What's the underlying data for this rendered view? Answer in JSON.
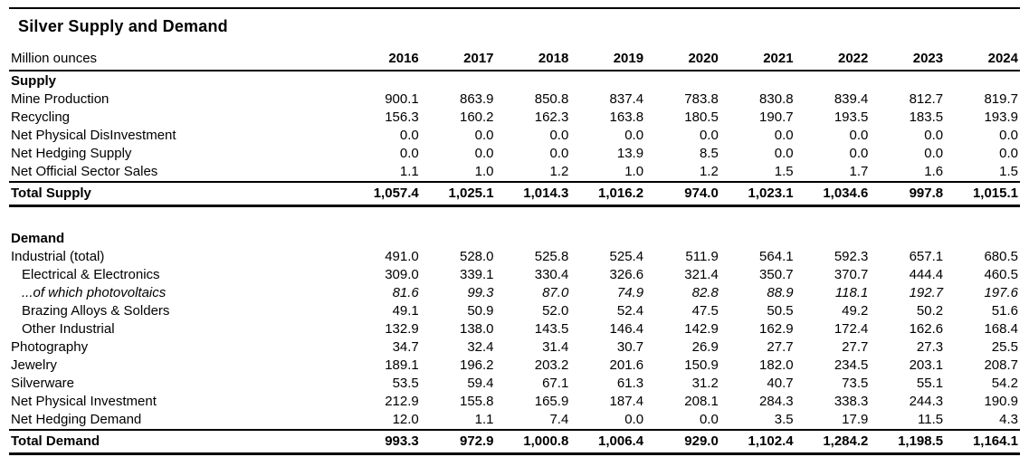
{
  "title": "Silver Supply and Demand",
  "chart_data": {
    "type": "table",
    "title": "Silver Supply and Demand",
    "unit_label": "Million ounces",
    "columns": [
      "2016",
      "2017",
      "2018",
      "2019",
      "2020",
      "2021",
      "2022",
      "2023",
      "2024"
    ],
    "sections": [
      {
        "name": "Supply",
        "rows": [
          {
            "label": "Mine Production",
            "style": "normal",
            "values": [
              "900.1",
              "863.9",
              "850.8",
              "837.4",
              "783.8",
              "830.8",
              "839.4",
              "812.7",
              "819.7"
            ]
          },
          {
            "label": "Recycling",
            "style": "normal",
            "values": [
              "156.3",
              "160.2",
              "162.3",
              "163.8",
              "180.5",
              "190.7",
              "193.5",
              "183.5",
              "193.9"
            ]
          },
          {
            "label": "Net Physical DisInvestment",
            "style": "normal",
            "values": [
              "0.0",
              "0.0",
              "0.0",
              "0.0",
              "0.0",
              "0.0",
              "0.0",
              "0.0",
              "0.0"
            ]
          },
          {
            "label": "Net Hedging Supply",
            "style": "normal",
            "values": [
              "0.0",
              "0.0",
              "0.0",
              "13.9",
              "8.5",
              "0.0",
              "0.0",
              "0.0",
              "0.0"
            ]
          },
          {
            "label": "Net Official Sector Sales",
            "style": "normal",
            "values": [
              "1.1",
              "1.0",
              "1.2",
              "1.0",
              "1.2",
              "1.5",
              "1.7",
              "1.6",
              "1.5"
            ]
          }
        ],
        "total": {
          "label": "Total Supply",
          "values": [
            "1,057.4",
            "1,025.1",
            "1,014.3",
            "1,016.2",
            "974.0",
            "1,023.1",
            "1,034.6",
            "997.8",
            "1,015.1"
          ]
        }
      },
      {
        "name": "Demand",
        "rows": [
          {
            "label": "Industrial (total)",
            "style": "normal",
            "values": [
              "491.0",
              "528.0",
              "525.8",
              "525.4",
              "511.9",
              "564.1",
              "592.3",
              "657.1",
              "680.5"
            ]
          },
          {
            "label": "Electrical & Electronics",
            "style": "indent",
            "values": [
              "309.0",
              "339.1",
              "330.4",
              "326.6",
              "321.4",
              "350.7",
              "370.7",
              "444.4",
              "460.5"
            ]
          },
          {
            "label": "...of which photovoltaics",
            "style": "indent-italic",
            "values": [
              "81.6",
              "99.3",
              "87.0",
              "74.9",
              "82.8",
              "88.9",
              "118.1",
              "192.7",
              "197.6"
            ]
          },
          {
            "label": "Brazing Alloys & Solders",
            "style": "indent",
            "values": [
              "49.1",
              "50.9",
              "52.0",
              "52.4",
              "47.5",
              "50.5",
              "49.2",
              "50.2",
              "51.6"
            ]
          },
          {
            "label": "Other Industrial",
            "style": "indent",
            "values": [
              "132.9",
              "138.0",
              "143.5",
              "146.4",
              "142.9",
              "162.9",
              "172.4",
              "162.6",
              "168.4"
            ]
          },
          {
            "label": "Photography",
            "style": "normal",
            "values": [
              "34.7",
              "32.4",
              "31.4",
              "30.7",
              "26.9",
              "27.7",
              "27.7",
              "27.3",
              "25.5"
            ]
          },
          {
            "label": "Jewelry",
            "style": "normal",
            "values": [
              "189.1",
              "196.2",
              "203.2",
              "201.6",
              "150.9",
              "182.0",
              "234.5",
              "203.1",
              "208.7"
            ]
          },
          {
            "label": "Silverware",
            "style": "normal",
            "values": [
              "53.5",
              "59.4",
              "67.1",
              "61.3",
              "31.2",
              "40.7",
              "73.5",
              "55.1",
              "54.2"
            ]
          },
          {
            "label": "Net Physical Investment",
            "style": "normal",
            "values": [
              "212.9",
              "155.8",
              "165.9",
              "187.4",
              "208.1",
              "284.3",
              "338.3",
              "244.3",
              "190.9"
            ]
          },
          {
            "label": "Net Hedging Demand",
            "style": "normal",
            "values": [
              "12.0",
              "1.1",
              "7.4",
              "0.0",
              "0.0",
              "3.5",
              "17.9",
              "11.5",
              "4.3"
            ]
          }
        ],
        "total": {
          "label": "Total Demand",
          "values": [
            "993.3",
            "972.9",
            "1,000.8",
            "1,006.4",
            "929.0",
            "1,102.4",
            "1,284.2",
            "1,198.5",
            "1,164.1"
          ]
        }
      }
    ]
  }
}
